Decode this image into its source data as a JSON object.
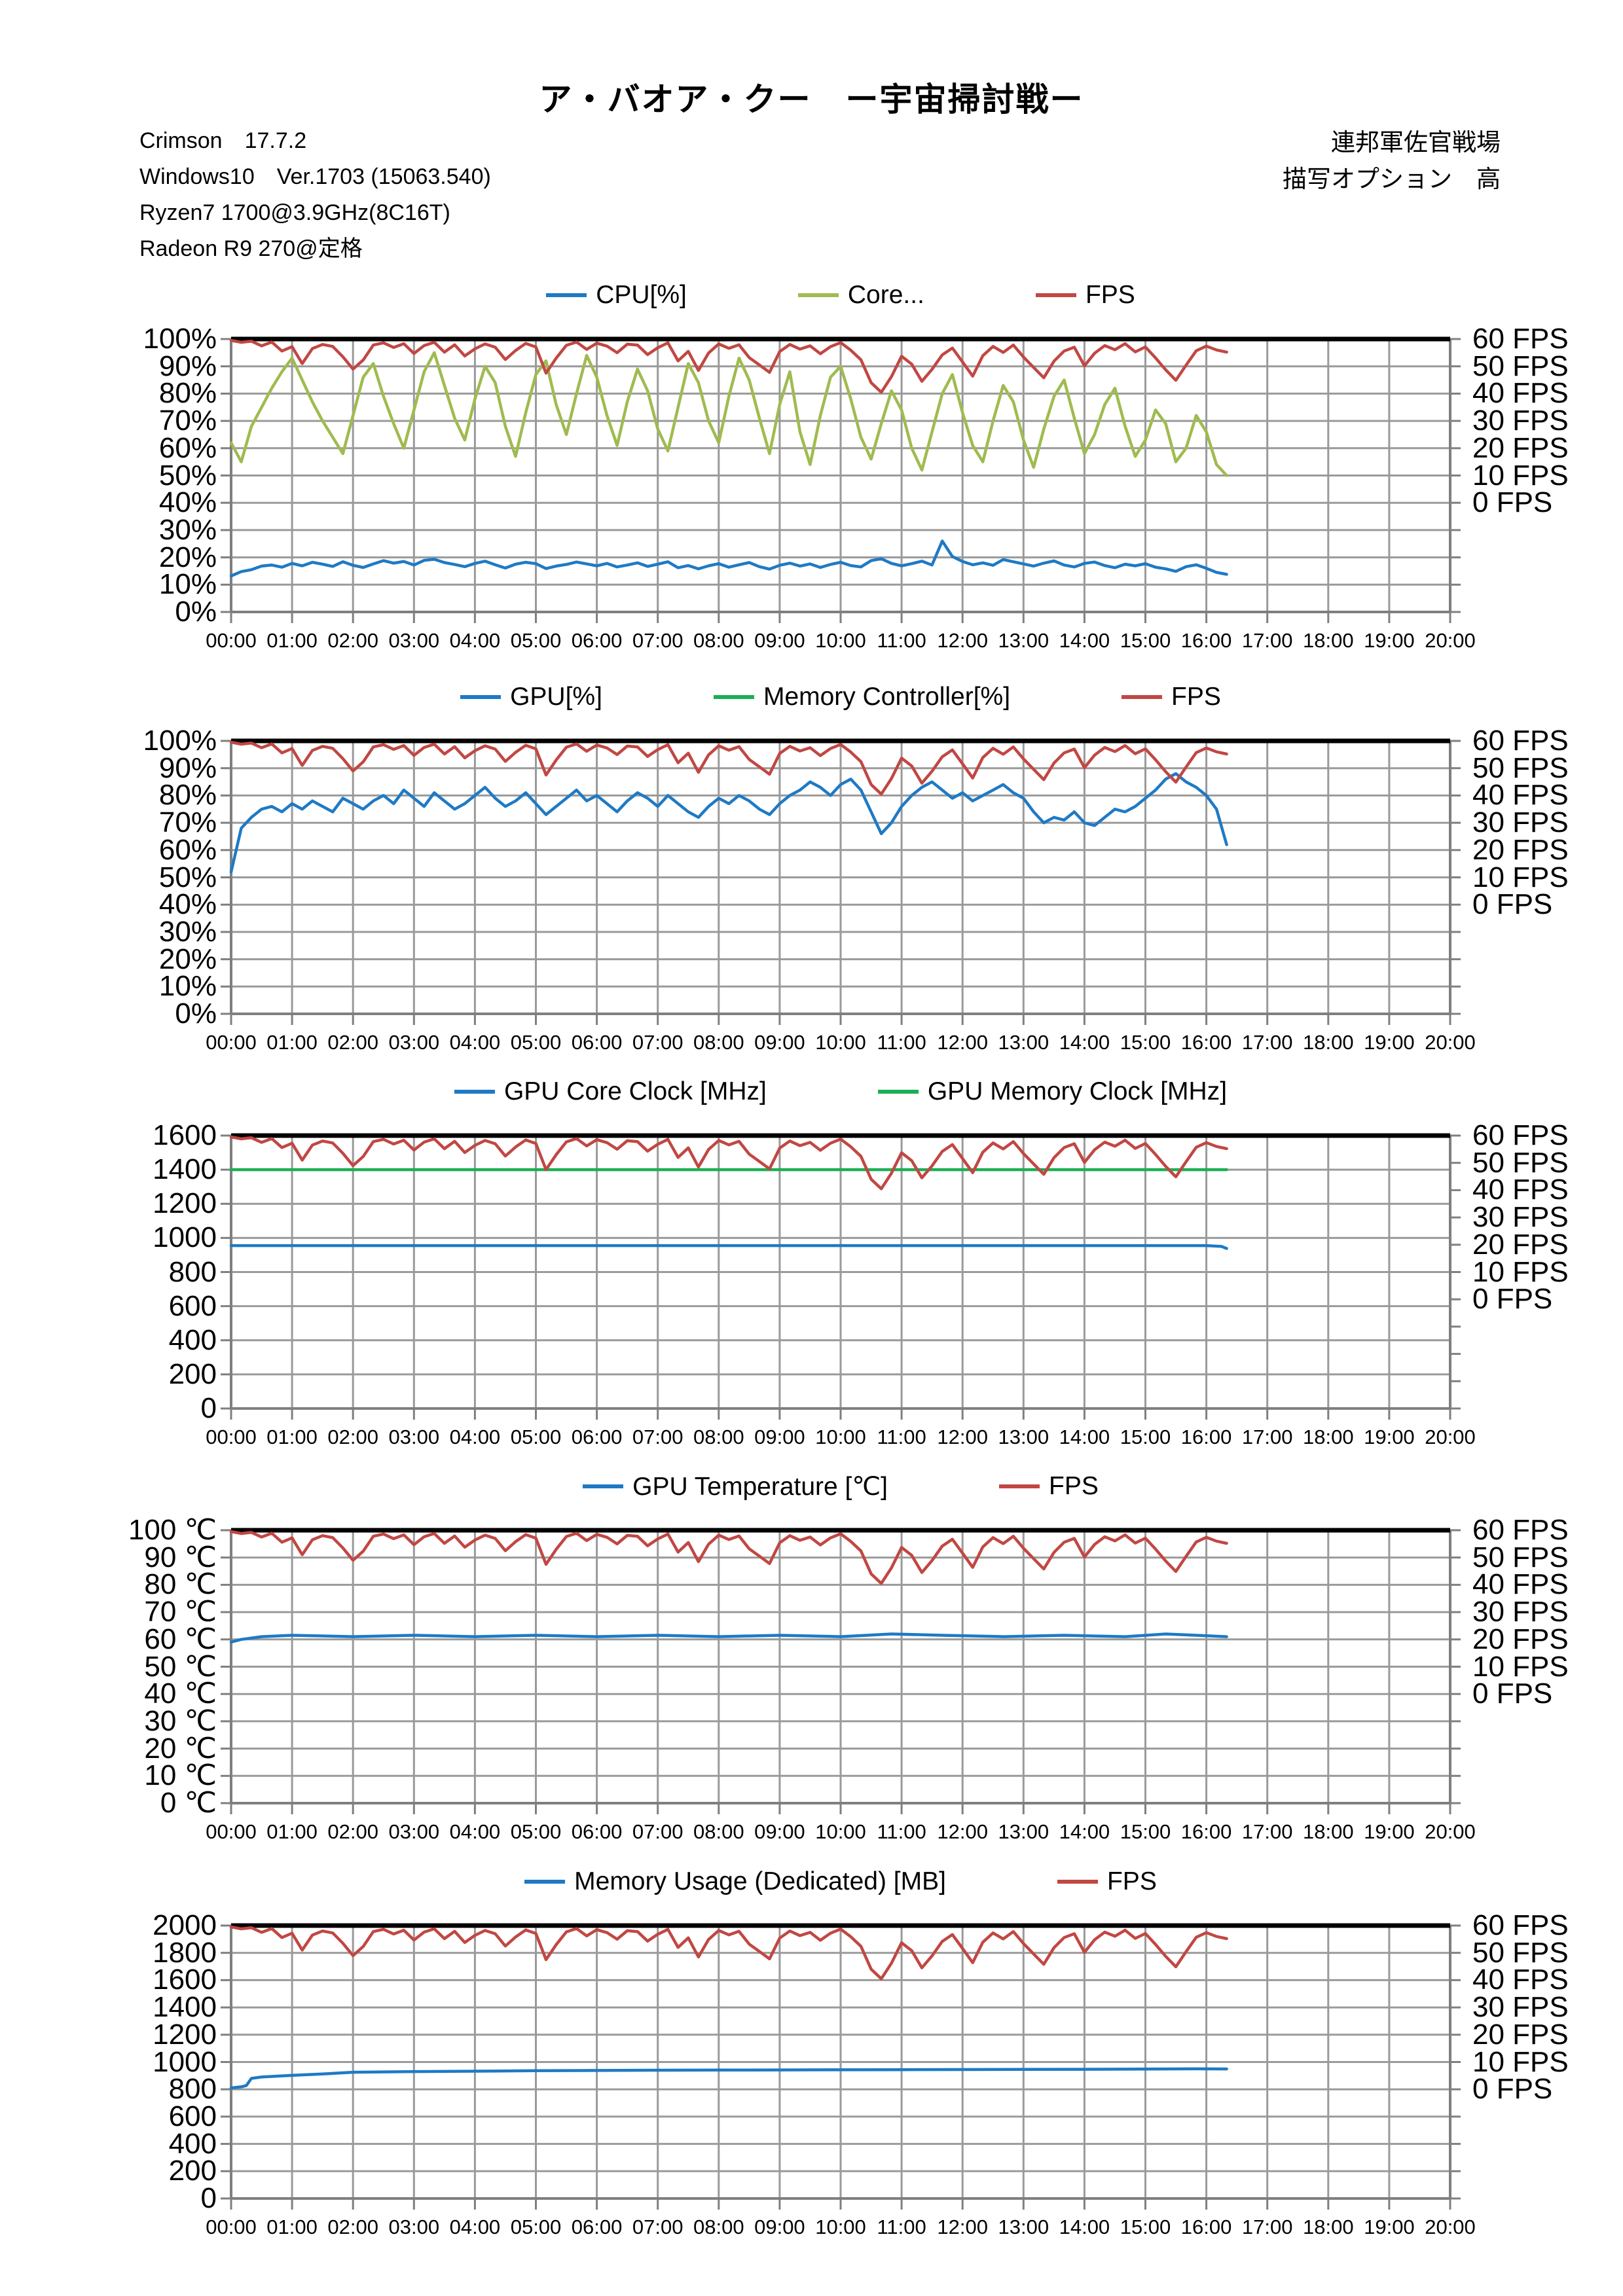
{
  "header": {
    "title": "ア・バオア・クー　ー宇宙掃討戦ー",
    "system_lines": [
      "Crimson　17.7.2",
      "Windows10　Ver.1703 (15063.540)",
      "Ryzen7 1700@3.9GHz(8C16T)",
      "Radeon R9 270@定格"
    ],
    "right_lines": [
      "連邦軍佐官戦場",
      "描写オプション　高"
    ]
  },
  "colors": {
    "blue": "#1E7AC5",
    "olive_green": "#9FBB4F",
    "green": "#1AAF54",
    "red": "#C14743",
    "gridline": "#9A9A9A",
    "axis": "#7F7F7F",
    "plot_top_border": "#000000"
  },
  "axis": {
    "x_labels": [
      "00:00",
      "01:00",
      "02:00",
      "03:00",
      "04:00",
      "05:00",
      "06:00",
      "07:00",
      "08:00",
      "09:00",
      "10:00",
      "11:00",
      "12:00",
      "13:00",
      "14:00",
      "15:00",
      "16:00",
      "17:00",
      "18:00",
      "19:00",
      "20:00"
    ],
    "fps_labels": [
      "60 FPS",
      "50 FPS",
      "40 FPS",
      "30 FPS",
      "20 FPS",
      "10 FPS",
      "0 FPS"
    ],
    "fps_axis_min": -40,
    "fps_axis_max": 60,
    "x_range_minutes": [
      0,
      1200
    ]
  },
  "charts": [
    {
      "id": "cpu-usage",
      "ylim": 100,
      "divisions": 10,
      "ylabels": [
        "100%",
        "90%",
        "80%",
        "70%",
        "60%",
        "50%",
        "40%",
        "30%",
        "20%",
        "10%",
        "0%"
      ],
      "legend": [
        {
          "label": "CPU[%]",
          "color": "#1E7AC5"
        },
        {
          "label": "Core...",
          "color": "#9FBB4F"
        },
        {
          "label": "FPS",
          "color": "#C14743"
        }
      ],
      "series": [
        {
          "name": "core",
          "color": "#9FBB4F",
          "axis": "left",
          "data": "core_percent"
        },
        {
          "name": "cpu",
          "color": "#1E7AC5",
          "axis": "left",
          "data": "cpu_percent"
        },
        {
          "name": "fps",
          "color": "#C14743",
          "axis": "right",
          "data": "fps"
        }
      ]
    },
    {
      "id": "gpu-usage",
      "ylim": 100,
      "divisions": 10,
      "ylabels": [
        "100%",
        "90%",
        "80%",
        "70%",
        "60%",
        "50%",
        "40%",
        "30%",
        "20%",
        "10%",
        "0%"
      ],
      "legend": [
        {
          "label": "GPU[%]",
          "color": "#1E7AC5"
        },
        {
          "label": "Memory Controller[%]",
          "color": "#1AAF54"
        },
        {
          "label": "FPS",
          "color": "#C14743"
        }
      ],
      "series": [
        {
          "name": "memory-controller",
          "color": "#1AAF54",
          "axis": "left",
          "data": "memory_controller_percent"
        },
        {
          "name": "gpu",
          "color": "#1E7AC5",
          "axis": "left",
          "data": "gpu_percent"
        },
        {
          "name": "fps",
          "color": "#C14743",
          "axis": "right",
          "data": "fps"
        }
      ]
    },
    {
      "id": "gpu-clocks",
      "ylim": 1600,
      "divisions": 8,
      "ylabels": [
        "1600",
        "1400",
        "1200",
        "1000",
        "800",
        "600",
        "400",
        "200",
        "0"
      ],
      "legend": [
        {
          "label": "GPU Core Clock [MHz]",
          "color": "#1E7AC5"
        },
        {
          "label": "GPU Memory Clock [MHz]",
          "color": "#1AAF54"
        }
      ],
      "series": [
        {
          "name": "gpu-memory-clock",
          "color": "#1AAF54",
          "axis": "left",
          "data": "gpu_memory_clock_mhz"
        },
        {
          "name": "gpu-core-clock",
          "color": "#1E7AC5",
          "axis": "left",
          "data": "gpu_core_clock_mhz"
        },
        {
          "name": "fps",
          "color": "#C14743",
          "axis": "right",
          "data": "fps"
        }
      ]
    },
    {
      "id": "gpu-temperature",
      "ylim": 100,
      "divisions": 10,
      "ylabels": [
        "100 ℃",
        "90 ℃",
        "80 ℃",
        "70 ℃",
        "60 ℃",
        "50 ℃",
        "40 ℃",
        "30 ℃",
        "20 ℃",
        "10 ℃",
        "0 ℃"
      ],
      "legend": [
        {
          "label": "GPU Temperature [℃]",
          "color": "#1E7AC5"
        },
        {
          "label": "FPS",
          "color": "#C14743"
        }
      ],
      "series": [
        {
          "name": "gpu-temperature",
          "color": "#1E7AC5",
          "axis": "left",
          "data": "gpu_temperature_c"
        },
        {
          "name": "fps",
          "color": "#C14743",
          "axis": "right",
          "data": "fps"
        }
      ]
    },
    {
      "id": "memory-usage",
      "ylim": 2000,
      "divisions": 10,
      "ylabels": [
        "2000",
        "1800",
        "1600",
        "1400",
        "1200",
        "1000",
        "800",
        "600",
        "400",
        "200",
        "0"
      ],
      "legend": [
        {
          "label": "Memory Usage (Dedicated) [MB]",
          "color": "#1E7AC5"
        },
        {
          "label": "FPS",
          "color": "#C14743"
        }
      ],
      "series": [
        {
          "name": "memory-usage",
          "color": "#1E7AC5",
          "axis": "left",
          "data": "memory_usage_mb"
        },
        {
          "name": "fps",
          "color": "#C14743",
          "axis": "right",
          "data": "fps"
        }
      ]
    }
  ],
  "chart_data": {
    "type": "line",
    "x_step_minutes": 10,
    "x_axis_range_minutes": [
      0,
      1200
    ],
    "data_end_minute": 980,
    "fps": {
      "values": [
        59.5,
        58.8,
        59.2,
        57.5,
        58.9,
        55.6,
        57.2,
        51,
        56.5,
        58,
        57.3,
        53.5,
        49,
        52.3,
        57.8,
        58.6,
        56.9,
        58.3,
        54.7,
        57.6,
        58.8,
        55.2,
        57.9,
        53.8,
        56.4,
        58.2,
        57,
        52.5,
        55.8,
        58.4,
        57.1,
        47.5,
        53,
        57.7,
        58.9,
        56.2,
        58.5,
        57.4,
        55,
        58.1,
        57.8,
        54.3,
        56.8,
        58.6,
        52,
        55.5,
        48.5,
        54.9,
        58.2,
        56.6,
        57.9,
        53.2,
        50.5,
        47.8,
        55.4,
        58,
        56.3,
        57.5,
        54.6,
        57.2,
        58.7,
        55.9,
        52.4,
        44,
        40.5,
        46.2,
        53.7,
        50.8,
        44.5,
        48.9,
        54.2,
        56.7,
        51.6,
        46.4,
        53.9,
        57.3,
        55.1,
        57.8,
        53.4,
        49.6,
        45.8,
        51.9,
        55.6,
        57,
        50.2,
        54.8,
        57.6,
        56.1,
        58.3,
        55.3,
        57.1,
        53.1,
        48.7,
        44.9,
        50.4,
        55.7,
        57.4,
        56,
        55.2
      ]
    },
    "cpu_percent": {
      "values": [
        13.2,
        14.8,
        15.5,
        16.8,
        17.2,
        16.4,
        17.8,
        16.9,
        18.2,
        17.5,
        16.7,
        18.4,
        17.1,
        16.3,
        17.6,
        18.8,
        17.9,
        18.5,
        17.2,
        18.9,
        19.3,
        18.1,
        17.4,
        16.6,
        17.8,
        18.6,
        17.3,
        16.1,
        17.5,
        18.2,
        17.7,
        15.9,
        16.8,
        17.4,
        18.3,
        17.6,
        16.9,
        17.8,
        16.5,
        17.2,
        18,
        16.7,
        17.5,
        18.4,
        16.2,
        17,
        15.8,
        16.9,
        17.7,
        16.4,
        17.3,
        18.1,
        16.6,
        15.7,
        17.1,
        17.9,
        16.8,
        17.6,
        16.3,
        17.4,
        18.2,
        17,
        16.5,
        18.8,
        19.5,
        17.8,
        16.9,
        17.7,
        18.6,
        17.2,
        26,
        20.3,
        18.5,
        17.3,
        18,
        17.1,
        19.2,
        18.4,
        17.6,
        16.8,
        17.9,
        18.7,
        17.2,
        16.5,
        17.8,
        18.3,
        17,
        16.2,
        17.5,
        16.9,
        17.7,
        16.4,
        15.8,
        14.9,
        16.6,
        17.3,
        16,
        14.5,
        13.8
      ]
    },
    "core_percent": {
      "values": [
        62,
        55,
        68,
        75,
        82,
        88,
        93,
        85,
        77,
        70,
        64,
        58,
        72,
        86,
        91,
        79,
        69,
        60,
        74,
        88,
        95,
        83,
        71,
        63,
        78,
        90,
        84,
        68,
        57,
        73,
        87,
        92,
        76,
        65,
        80,
        94,
        86,
        72,
        61,
        77,
        89,
        81,
        67,
        59,
        75,
        91,
        84,
        70,
        62,
        79,
        93,
        85,
        71,
        58,
        76,
        88,
        66,
        54,
        72,
        86,
        90,
        78,
        64,
        56,
        69,
        81,
        74,
        60,
        52,
        66,
        80,
        87,
        73,
        61,
        55,
        70,
        83,
        77,
        63,
        53,
        67,
        79,
        85,
        71,
        58,
        65,
        76,
        82,
        68,
        57,
        63,
        74,
        69,
        55,
        60,
        72,
        66,
        54,
        50
      ]
    },
    "gpu_percent": {
      "values": [
        52,
        68,
        72,
        75,
        76,
        74,
        77,
        75,
        78,
        76,
        74,
        79,
        77,
        75,
        78,
        80,
        77,
        82,
        79,
        76,
        81,
        78,
        75,
        77,
        80,
        83,
        79,
        76,
        78,
        81,
        77,
        73,
        76,
        79,
        82,
        78,
        80,
        77,
        74,
        78,
        81,
        79,
        76,
        80,
        77,
        74,
        72,
        76,
        79,
        77,
        80,
        78,
        75,
        73,
        77,
        80,
        82,
        85,
        83,
        80,
        84,
        86,
        82,
        74,
        66,
        70,
        76,
        80,
        83,
        85,
        82,
        79,
        81,
        78,
        80,
        82,
        84,
        81,
        79,
        74,
        70,
        72,
        71,
        74,
        70,
        69,
        72,
        75,
        74,
        76,
        79,
        82,
        86,
        88,
        85,
        83,
        80,
        75,
        62
      ]
    },
    "memory_controller_percent": {
      "points": []
    },
    "gpu_core_clock_mhz": {
      "points": [
        [
          0,
          955
        ],
        [
          960,
          955
        ],
        [
          975,
          950
        ],
        [
          980,
          938
        ]
      ]
    },
    "gpu_memory_clock_mhz": {
      "points": [
        [
          0,
          1400
        ],
        [
          980,
          1400
        ]
      ]
    },
    "gpu_temperature_c": {
      "points": [
        [
          0,
          59
        ],
        [
          10,
          60
        ],
        [
          30,
          61
        ],
        [
          60,
          61.5
        ],
        [
          120,
          61
        ],
        [
          180,
          61.5
        ],
        [
          240,
          61
        ],
        [
          300,
          61.5
        ],
        [
          360,
          61
        ],
        [
          420,
          61.5
        ],
        [
          480,
          61
        ],
        [
          540,
          61.5
        ],
        [
          600,
          61
        ],
        [
          650,
          62
        ],
        [
          700,
          61.5
        ],
        [
          760,
          61
        ],
        [
          820,
          61.5
        ],
        [
          880,
          61
        ],
        [
          920,
          62
        ],
        [
          950,
          61.5
        ],
        [
          980,
          61
        ]
      ]
    },
    "memory_usage_mb": {
      "points": [
        [
          0,
          810
        ],
        [
          10,
          818
        ],
        [
          15,
          828
        ],
        [
          20,
          880
        ],
        [
          30,
          890
        ],
        [
          60,
          902
        ],
        [
          90,
          912
        ],
        [
          120,
          925
        ],
        [
          180,
          930
        ],
        [
          240,
          933
        ],
        [
          300,
          936
        ],
        [
          360,
          938
        ],
        [
          420,
          940
        ],
        [
          480,
          941
        ],
        [
          540,
          942
        ],
        [
          600,
          943
        ],
        [
          660,
          944
        ],
        [
          720,
          945
        ],
        [
          780,
          946
        ],
        [
          840,
          947
        ],
        [
          900,
          948
        ],
        [
          950,
          950
        ],
        [
          980,
          949
        ]
      ]
    }
  }
}
